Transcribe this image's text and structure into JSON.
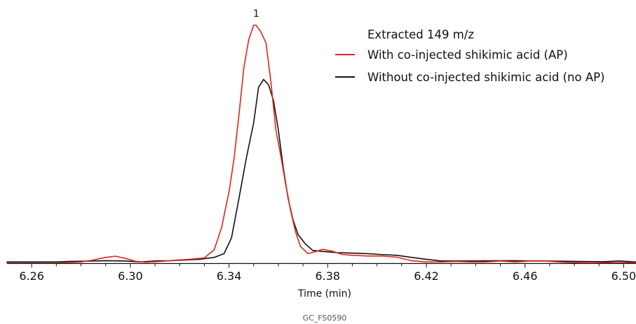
{
  "chart_data": {
    "type": "line",
    "xlabel": "Time (min)",
    "ylabel": "",
    "xlim": [
      6.25,
      6.505
    ],
    "ylim": [
      0,
      100
    ],
    "x_ticks": [
      6.26,
      6.3,
      6.34,
      6.38,
      6.42,
      6.46,
      6.5
    ],
    "x_tick_labels": [
      "6.26",
      "6.30",
      "6.34",
      "6.38",
      "6.42",
      "6.46",
      "6.50"
    ],
    "legend_title": "Extracted 149 m/z",
    "legend_position": "top-right",
    "grid": false,
    "annotations": [
      {
        "text": "1",
        "x": 6.351,
        "y": 100
      }
    ],
    "footer": "GC_FS0590",
    "series": [
      {
        "name": "With co-injected shikimic acid (AP)",
        "color": "#e2231a",
        "x": [
          6.25,
          6.26,
          6.27,
          6.28,
          6.285,
          6.29,
          6.294,
          6.298,
          6.302,
          6.306,
          6.312,
          6.318,
          6.324,
          6.33,
          6.334,
          6.337,
          6.34,
          6.342,
          6.344,
          6.346,
          6.348,
          6.35,
          6.351,
          6.353,
          6.355,
          6.357,
          6.359,
          6.361,
          6.363,
          6.365,
          6.367,
          6.369,
          6.372,
          6.375,
          6.378,
          6.382,
          6.386,
          6.39,
          6.396,
          6.402,
          6.408,
          6.414,
          6.42,
          6.426,
          6.432,
          6.438,
          6.444,
          6.45,
          6.456,
          6.462,
          6.468,
          6.474,
          6.48,
          6.486,
          6.492,
          6.498,
          6.505
        ],
        "values": [
          0,
          0,
          0,
          0.5,
          1.3,
          2.4,
          2.9,
          2.0,
          0.8,
          0.4,
          0.7,
          1.2,
          1.6,
          2.2,
          5.6,
          15.0,
          30.0,
          43.6,
          62.0,
          82.0,
          94.0,
          100.0,
          100.0,
          97.0,
          92.5,
          76.0,
          56.0,
          45.0,
          33.0,
          22.0,
          13.0,
          7.0,
          4.0,
          4.8,
          5.8,
          5.0,
          3.6,
          3.3,
          3.0,
          3.0,
          2.5,
          1.0,
          0.5,
          0.5,
          0.7,
          0.5,
          0.5,
          0.9,
          0.5,
          0.9,
          0.9,
          0.5,
          0.2,
          0.4,
          0.2,
          0.2,
          0.2
        ]
      },
      {
        "name": "Without co-injected shikimic acid (no AP)",
        "color": "#111111",
        "x": [
          6.25,
          6.26,
          6.27,
          6.274,
          6.28,
          6.29,
          6.298,
          6.304,
          6.31,
          6.316,
          6.322,
          6.328,
          6.334,
          6.338,
          6.341,
          6.344,
          6.347,
          6.35,
          6.352,
          6.354,
          6.356,
          6.358,
          6.36,
          6.362,
          6.364,
          6.366,
          6.368,
          6.371,
          6.374,
          6.378,
          6.384,
          6.39,
          6.396,
          6.402,
          6.408,
          6.414,
          6.42,
          6.426,
          6.432,
          6.44,
          6.448,
          6.456,
          6.462,
          6.468,
          6.476,
          6.484,
          6.492,
          6.498,
          6.505
        ],
        "values": [
          0.5,
          0.5,
          0.5,
          0.7,
          0.8,
          1.0,
          0.9,
          0.5,
          0.9,
          1.0,
          1.3,
          1.6,
          2.4,
          4.0,
          10.6,
          27.0,
          44.0,
          59.0,
          74.0,
          77.2,
          75.0,
          68.5,
          56.0,
          40.0,
          27.0,
          18.0,
          12.0,
          8.0,
          5.3,
          4.9,
          4.4,
          4.2,
          4.0,
          3.6,
          3.3,
          2.4,
          1.6,
          0.9,
          0.9,
          0.9,
          1.0,
          1.0,
          0.9,
          0.9,
          0.8,
          0.7,
          0.6,
          0.9,
          0.5
        ]
      }
    ]
  }
}
